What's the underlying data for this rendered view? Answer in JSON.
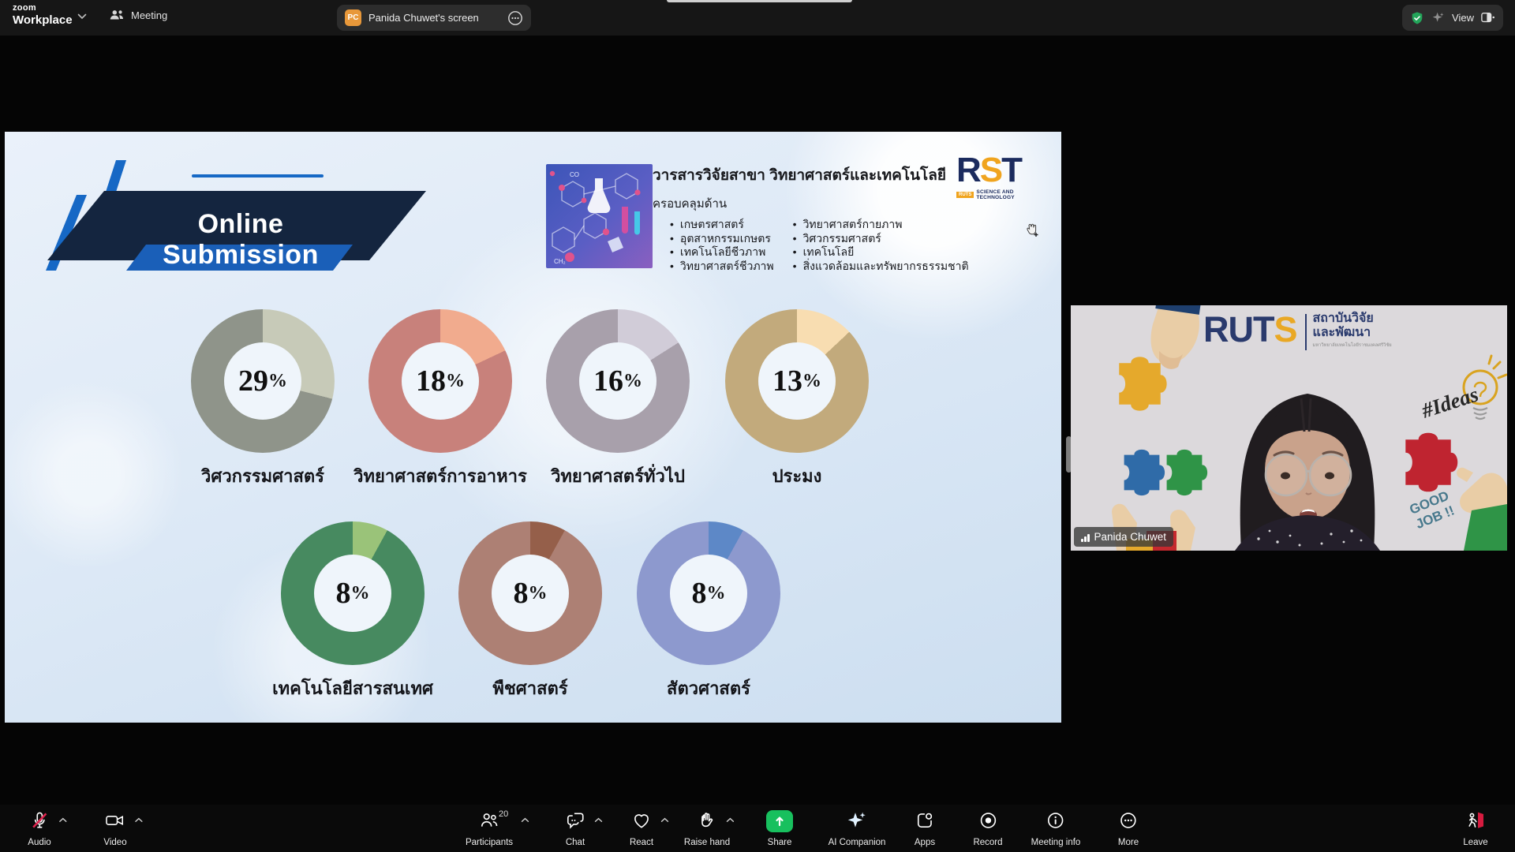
{
  "window": {
    "brand_top": "zoom",
    "brand_bottom": "Workplace",
    "meeting_tab_label": "Meeting",
    "screen_tab_label": "Panida Chuwet's screen",
    "screen_tab_badge": "PC",
    "view_label": "View"
  },
  "slide": {
    "title": "Online Submission",
    "journal": {
      "heading": "วารสารวิจัยสาขา วิทยาศาสตร์และเทคโนโลยี",
      "subheading": "ครอบคลุมด้าน",
      "bullets_left": [
        "เกษตรศาสตร์",
        "อุตสาหกรรมเกษตร",
        "เทคโนโลยีชีวภาพ",
        "วิทยาศาสตร์ชีวภาพ"
      ],
      "bullets_right": [
        "วิทยาศาสตร์กายภาพ",
        "วิศวกรรมศาสตร์",
        "เทคโนโลยี",
        "สิ่งแวดล้อมและทรัพยากรธรรมชาติ"
      ]
    },
    "rst_logo": {
      "r": "R",
      "s": "S",
      "t": "T",
      "badge": "RUTS",
      "caption": "SCIENCE AND TECHNOLOGY"
    }
  },
  "chart_data": {
    "type": "pie",
    "subtype": "donut",
    "title": "Online Submission",
    "value_unit": "%",
    "legend_position": "label-below-each-donut",
    "series": [
      {
        "label": "วิศวกรรมศาสตร์",
        "value": 29,
        "body_color": "#8f948a",
        "segment_color": "#c7cab8"
      },
      {
        "label": "วิทยาศาสตร์การอาหาร",
        "value": 18,
        "body_color": "#c8817b",
        "segment_color": "#f1ab8e"
      },
      {
        "label": "วิทยาศาสตร์ทั่วไป",
        "value": 16,
        "body_color": "#a8a0ab",
        "segment_color": "#d1ccd8"
      },
      {
        "label": "ประมง",
        "value": 13,
        "body_color": "#c2aa7c",
        "segment_color": "#f8ddb1"
      },
      {
        "label": "เทคโนโลยีสารสนเทศ",
        "value": 8,
        "body_color": "#478a60",
        "segment_color": "#9ac379"
      },
      {
        "label": "พืชศาสตร์",
        "value": 8,
        "body_color": "#ad8074",
        "segment_color": "#955f4a"
      },
      {
        "label": "สัตวศาสตร์",
        "value": 8,
        "body_color": "#8d99ce",
        "segment_color": "#5d88c7"
      }
    ]
  },
  "video": {
    "name": "Panida Chuwet",
    "background_logo": {
      "main": "RUT",
      "accent": "S",
      "line1": "สถาบันวิจัย",
      "line2": "และพัฒนา",
      "line3": "มหาวิทยาลัยเทคโนโลยีราชมงคลศรีวิชัย"
    },
    "doodles": {
      "ideas": "#Ideas",
      "good_job": "GOOD JOB !!"
    }
  },
  "toolbar": {
    "items": [
      {
        "id": "audio",
        "label": "Audio"
      },
      {
        "id": "video",
        "label": "Video"
      },
      {
        "id": "participants",
        "label": "Participants",
        "badge": "20"
      },
      {
        "id": "chat",
        "label": "Chat"
      },
      {
        "id": "react",
        "label": "React"
      },
      {
        "id": "raise-hand",
        "label": "Raise hand"
      },
      {
        "id": "share",
        "label": "Share"
      },
      {
        "id": "ai-companion",
        "label": "AI Companion"
      },
      {
        "id": "apps",
        "label": "Apps"
      },
      {
        "id": "record",
        "label": "Record"
      },
      {
        "id": "meeting-info",
        "label": "Meeting info"
      },
      {
        "id": "more",
        "label": "More"
      },
      {
        "id": "leave",
        "label": "Leave"
      }
    ]
  },
  "colors": {
    "zoom_green": "#18c05e",
    "leave_red": "#e02020",
    "mute_red": "#e0254f",
    "banner_navy": "#14253f",
    "accent_blue": "#1668c5",
    "rst_navy": "#1b2b5e",
    "rst_orange": "#f0a41e",
    "shield_green": "#23a55a"
  }
}
